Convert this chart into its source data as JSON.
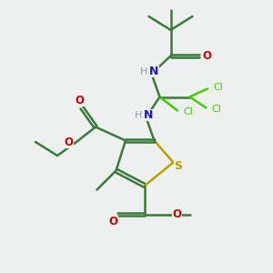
{
  "bg_color": "#eef0f0",
  "bond_color": "#3a7a3a",
  "S_color": "#b8a000",
  "N_color": "#1818cc",
  "O_color": "#cc0000",
  "Cl_color": "#44cc00",
  "H_color": "#7aaaaa",
  "line_width": 1.8,
  "font_size": 8.5,
  "fig_size": [
    3.0,
    3.0
  ],
  "dpi": 100,
  "xlim": [
    0,
    10
  ],
  "ylim": [
    0,
    10
  ]
}
